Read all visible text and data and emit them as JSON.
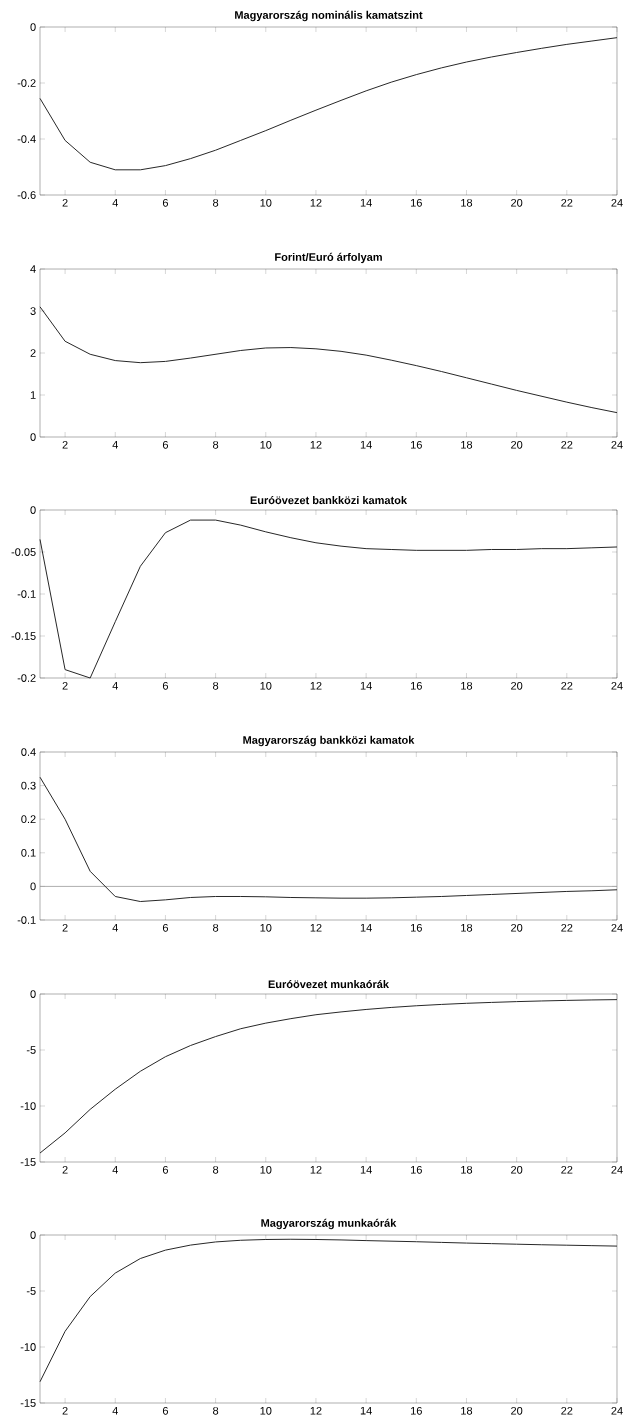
{
  "chart_data": [
    {
      "type": "line",
      "title": "Magyarország nominális kamatszint",
      "x": [
        1,
        2,
        3,
        4,
        5,
        6,
        7,
        8,
        9,
        10,
        11,
        12,
        13,
        14,
        15,
        16,
        17,
        18,
        19,
        20,
        21,
        22,
        23,
        24
      ],
      "xlim": [
        1,
        24
      ],
      "xticks": [
        2,
        4,
        6,
        8,
        10,
        12,
        14,
        16,
        18,
        20,
        22,
        24
      ],
      "ylim": [
        -0.6,
        0
      ],
      "yticks": [
        -0.6,
        -0.4,
        -0.2,
        0
      ],
      "series": [
        {
          "color": "#262626",
          "values": [
            -0.255,
            -0.405,
            -0.483,
            -0.51,
            -0.51,
            -0.495,
            -0.47,
            -0.44,
            -0.405,
            -0.37,
            -0.333,
            -0.297,
            -0.262,
            -0.228,
            -0.197,
            -0.17,
            -0.146,
            -0.125,
            -0.107,
            -0.091,
            -0.076,
            -0.062,
            -0.05,
            -0.038
          ]
        }
      ]
    },
    {
      "type": "line",
      "title": "Forint/Euró árfolyam",
      "x": [
        1,
        2,
        3,
        4,
        5,
        6,
        7,
        8,
        9,
        10,
        11,
        12,
        13,
        14,
        15,
        16,
        17,
        18,
        19,
        20,
        21,
        22,
        23,
        24
      ],
      "xlim": [
        1,
        24
      ],
      "xticks": [
        2,
        4,
        6,
        8,
        10,
        12,
        14,
        16,
        18,
        20,
        22,
        24
      ],
      "ylim": [
        0,
        4
      ],
      "yticks": [
        0,
        1,
        2,
        3,
        4
      ],
      "series": [
        {
          "color": "#262626",
          "values": [
            3.1,
            2.28,
            1.97,
            1.82,
            1.77,
            1.8,
            1.88,
            1.97,
            2.06,
            2.12,
            2.13,
            2.1,
            2.04,
            1.95,
            1.83,
            1.7,
            1.56,
            1.41,
            1.26,
            1.11,
            0.97,
            0.83,
            0.7,
            0.58
          ]
        }
      ]
    },
    {
      "type": "line",
      "title": "Euróövezet bankközi kamatok",
      "x": [
        1,
        2,
        3,
        4,
        5,
        6,
        7,
        8,
        9,
        10,
        11,
        12,
        13,
        14,
        15,
        16,
        17,
        18,
        19,
        20,
        21,
        22,
        23,
        24
      ],
      "xlim": [
        1,
        24
      ],
      "xticks": [
        2,
        4,
        6,
        8,
        10,
        12,
        14,
        16,
        18,
        20,
        22,
        24
      ],
      "ylim": [
        -0.2,
        0
      ],
      "yticks": [
        -0.2,
        -0.15,
        -0.1,
        -0.05,
        0
      ],
      "series": [
        {
          "color": "#262626",
          "values": [
            -0.035,
            -0.19,
            -0.2,
            -0.133,
            -0.067,
            -0.027,
            -0.012,
            -0.012,
            -0.018,
            -0.026,
            -0.033,
            -0.039,
            -0.043,
            -0.046,
            -0.047,
            -0.048,
            -0.048,
            -0.048,
            -0.047,
            -0.047,
            -0.046,
            -0.046,
            -0.045,
            -0.044
          ]
        }
      ]
    },
    {
      "type": "line",
      "title": "Magyarország bankközi kamatok",
      "x": [
        1,
        2,
        3,
        4,
        5,
        6,
        7,
        8,
        9,
        10,
        11,
        12,
        13,
        14,
        15,
        16,
        17,
        18,
        19,
        20,
        21,
        22,
        23,
        24
      ],
      "xlim": [
        1,
        24
      ],
      "xticks": [
        2,
        4,
        6,
        8,
        10,
        12,
        14,
        16,
        18,
        20,
        22,
        24
      ],
      "ylim": [
        -0.1,
        0.4
      ],
      "yticks": [
        -0.1,
        0,
        0.1,
        0.2,
        0.3,
        0.4
      ],
      "ref_lines": [
        {
          "axis": "y",
          "value": 0,
          "color": "#999999"
        }
      ],
      "series": [
        {
          "color": "#262626",
          "values": [
            0.325,
            0.2,
            0.045,
            -0.03,
            -0.045,
            -0.04,
            -0.033,
            -0.03,
            -0.03,
            -0.031,
            -0.033,
            -0.034,
            -0.035,
            -0.035,
            -0.034,
            -0.032,
            -0.03,
            -0.027,
            -0.024,
            -0.021,
            -0.018,
            -0.015,
            -0.013,
            -0.01
          ]
        }
      ]
    },
    {
      "type": "line",
      "title": "Euróövezet munkaórák",
      "x": [
        1,
        2,
        3,
        4,
        5,
        6,
        7,
        8,
        9,
        10,
        11,
        12,
        13,
        14,
        15,
        16,
        17,
        18,
        19,
        20,
        21,
        22,
        23,
        24
      ],
      "xlim": [
        1,
        24
      ],
      "xticks": [
        2,
        4,
        6,
        8,
        10,
        12,
        14,
        16,
        18,
        20,
        22,
        24
      ],
      "ylim": [
        -15,
        0
      ],
      "yticks": [
        -15,
        -10,
        -5,
        0
      ],
      "series": [
        {
          "color": "#262626",
          "values": [
            -14.2,
            -12.4,
            -10.3,
            -8.5,
            -6.9,
            -5.6,
            -4.6,
            -3.8,
            -3.1,
            -2.6,
            -2.2,
            -1.85,
            -1.6,
            -1.38,
            -1.2,
            -1.05,
            -0.93,
            -0.83,
            -0.75,
            -0.68,
            -0.62,
            -0.57,
            -0.53,
            -0.5
          ]
        }
      ]
    },
    {
      "type": "line",
      "title": "Magyarország munkaórák",
      "x": [
        1,
        2,
        3,
        4,
        5,
        6,
        7,
        8,
        9,
        10,
        11,
        12,
        13,
        14,
        15,
        16,
        17,
        18,
        19,
        20,
        21,
        22,
        23,
        24
      ],
      "xlim": [
        1,
        24
      ],
      "xticks": [
        2,
        4,
        6,
        8,
        10,
        12,
        14,
        16,
        18,
        20,
        22,
        24
      ],
      "ylim": [
        -15,
        0
      ],
      "yticks": [
        -15,
        -10,
        -5,
        0
      ],
      "series": [
        {
          "color": "#262626",
          "values": [
            -13.1,
            -8.6,
            -5.5,
            -3.4,
            -2.1,
            -1.35,
            -0.9,
            -0.62,
            -0.47,
            -0.4,
            -0.38,
            -0.4,
            -0.44,
            -0.5,
            -0.55,
            -0.6,
            -0.66,
            -0.72,
            -0.77,
            -0.82,
            -0.87,
            -0.91,
            -0.95,
            -0.99
          ]
        }
      ]
    }
  ]
}
